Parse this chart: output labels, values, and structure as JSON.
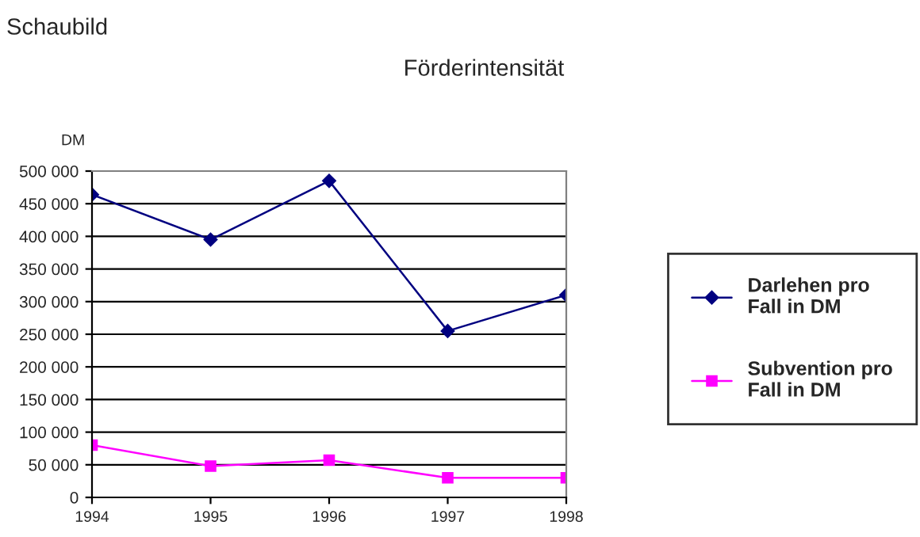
{
  "chart_data": {
    "type": "line",
    "title": "Förderintensität",
    "ylabel": "DM",
    "annotations": [
      "Schaubild"
    ],
    "x": [
      1994,
      1995,
      1996,
      1997,
      1998
    ],
    "series": [
      {
        "name": "Darlehen pro Fall in DM",
        "color": "#000080",
        "marker": "diamond",
        "values": [
          464000,
          395000,
          485000,
          255000,
          310000
        ]
      },
      {
        "name": "Subvention pro Fall in DM",
        "color": "#ff00ff",
        "marker": "square",
        "values": [
          80000,
          48000,
          57000,
          30000,
          30000
        ]
      }
    ],
    "xlim": [
      1994,
      1998
    ],
    "xticks": [
      1994,
      1995,
      1996,
      1997,
      1998
    ],
    "ylim": [
      0,
      500000
    ],
    "yticks": [
      {
        "value": 0,
        "label": "0"
      },
      {
        "value": 50000,
        "label": "50 000"
      },
      {
        "value": 100000,
        "label": "100 000"
      },
      {
        "value": 150000,
        "label": "150 000"
      },
      {
        "value": 200000,
        "label": "200 000"
      },
      {
        "value": 250000,
        "label": "250 000"
      },
      {
        "value": 300000,
        "label": "300 000"
      },
      {
        "value": 350000,
        "label": "350 000"
      },
      {
        "value": 400000,
        "label": "400 000"
      },
      {
        "value": 450000,
        "label": "450 000"
      },
      {
        "value": 500000,
        "label": "500 000"
      }
    ],
    "grid": "y",
    "legend": "right",
    "line_style": "solid"
  }
}
